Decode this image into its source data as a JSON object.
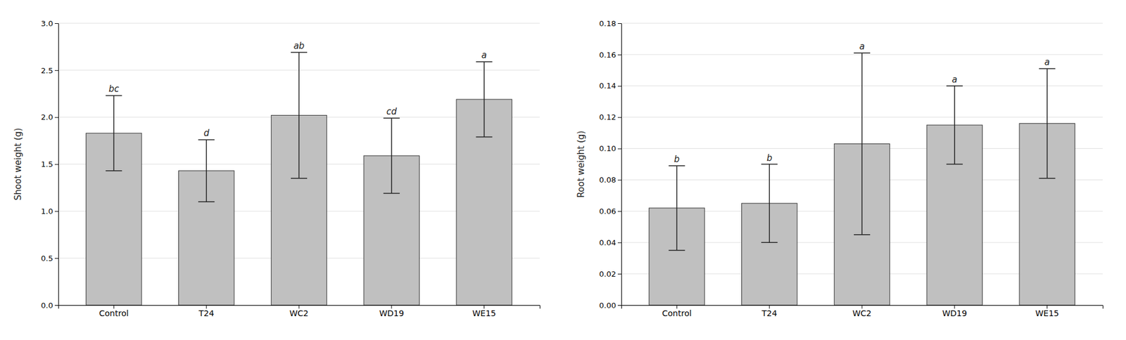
{
  "chart_data": [
    {
      "type": "bar",
      "categories": [
        "Control",
        "T24",
        "WC2",
        "WD19",
        "WE15"
      ],
      "values": [
        1.83,
        1.43,
        2.02,
        1.59,
        2.19
      ],
      "errors": [
        0.4,
        0.33,
        0.67,
        0.4,
        0.4
      ],
      "annotations": [
        "bc",
        "d",
        "ab",
        "cd",
        "a"
      ],
      "ylabel": "Shoot weight (g)",
      "color": "#c0c0c0",
      "ylim": [
        0,
        3.0
      ],
      "yticks": [
        {
          "value": 0,
          "label": "0.0"
        },
        0.5,
        {
          "value": 1.0,
          "label": "1.0"
        },
        1.5,
        {
          "value": 2.0,
          "label": "2.0"
        },
        2.5,
        {
          "value": 3.0,
          "label": "3.0"
        }
      ],
      "grid": true
    },
    {
      "type": "bar",
      "categories": [
        "Control",
        "T24",
        "WC2",
        "WD19",
        "WE15"
      ],
      "values": [
        0.062,
        0.065,
        0.103,
        0.115,
        0.116
      ],
      "errors": [
        0.027,
        0.025,
        0.058,
        0.025,
        0.035
      ],
      "annotations": [
        "b",
        "b",
        "a",
        "a",
        "a"
      ],
      "ylabel": "Root weight (g)",
      "color": "#c0c0c0",
      "ylim": [
        0,
        0.18
      ],
      "yticks": [
        {
          "value": 0,
          "label": "0.00"
        },
        0.02,
        0.04,
        0.06,
        0.08,
        {
          "value": 0.1,
          "label": "0.10"
        },
        0.12,
        0.14,
        0.16,
        0.18
      ],
      "grid": true
    }
  ]
}
